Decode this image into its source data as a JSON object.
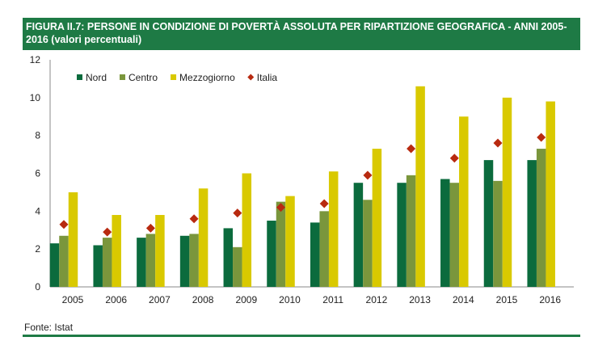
{
  "title": "FIGURA II.7: PERSONE IN CONDIZIONE DI POVERTÀ ASSOLUTA PER RIPARTIZIONE GEOGRAFICA - ANNI 2005-2016 (valori percentuali)",
  "source": "Fonte: Istat",
  "chart_data": {
    "type": "bar",
    "categories": [
      "2005",
      "2006",
      "2007",
      "2008",
      "2009",
      "2010",
      "2011",
      "2012",
      "2013",
      "2014",
      "2015",
      "2016"
    ],
    "ylim": [
      0,
      12
    ],
    "yticks": [
      0,
      2,
      4,
      6,
      8,
      10,
      12
    ],
    "legend_position": "top-left",
    "grid": false,
    "series": [
      {
        "name": "Nord",
        "type": "bar",
        "color": "#0b6b3d",
        "values": [
          2.3,
          2.2,
          2.6,
          2.7,
          3.1,
          3.5,
          3.4,
          5.5,
          5.5,
          5.7,
          6.7,
          6.7
        ]
      },
      {
        "name": "Centro",
        "type": "bar",
        "color": "#7a963c",
        "values": [
          2.7,
          2.6,
          2.8,
          2.8,
          2.1,
          4.5,
          4.0,
          4.6,
          5.9,
          5.5,
          5.6,
          7.3
        ]
      },
      {
        "name": "Mezzogiorno",
        "type": "bar",
        "color": "#d9c900",
        "values": [
          5.0,
          3.8,
          3.8,
          5.2,
          6.0,
          4.8,
          6.1,
          7.3,
          10.6,
          9.0,
          10.0,
          9.8
        ]
      },
      {
        "name": "Italia",
        "type": "marker",
        "color": "#b82a10",
        "values": [
          3.3,
          2.9,
          3.1,
          3.6,
          3.9,
          4.2,
          4.4,
          5.9,
          7.3,
          6.8,
          7.6,
          7.9
        ]
      }
    ]
  }
}
